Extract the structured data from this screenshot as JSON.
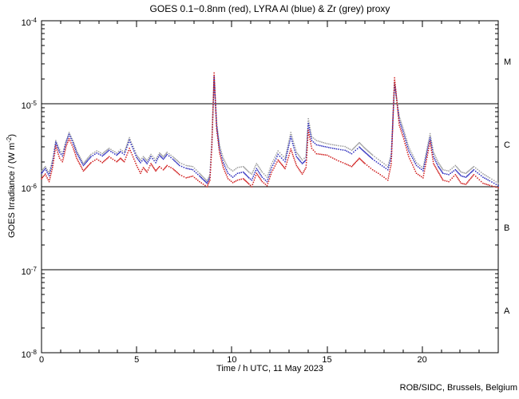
{
  "footer": "ROB/SIDC, Brussels, Belgium",
  "colors": {
    "background": "#ffffff",
    "frame": "#000000",
    "goes_red": "#cf1a1a",
    "lyra_al_blue": "#2727bc",
    "lyra_zr_grey": "#9c9c9c"
  },
  "chart_data": {
    "type": "scatter",
    "title": "GOES 0.1−0.8nm (red), LYRA Al (blue) & Zr (grey) proxy",
    "xlabel": "Time / h UTC, 11 May 2023",
    "ylabel_pre": "GOES Irradiance / (W m",
    "ylabel_sup": "-2",
    "ylabel_post": ")",
    "xlim": [
      0,
      24
    ],
    "ylim_exp": [
      -8,
      -4
    ],
    "x_major_ticks": [
      0,
      5,
      10,
      15,
      20
    ],
    "x_minor_step": 1,
    "grid": "off",
    "hlines_exp": [
      -5,
      -6,
      -7
    ],
    "y_tick_base": "10",
    "y_ticks": [
      {
        "exp": -4,
        "exp_label": "-4"
      },
      {
        "exp": -5,
        "exp_label": "-5"
      },
      {
        "exp": -6,
        "exp_label": "-6"
      },
      {
        "exp": -7,
        "exp_label": "-7"
      },
      {
        "exp": -8,
        "exp_label": "-8"
      }
    ],
    "class_bands": [
      {
        "label": "M",
        "exp_center": -4.5
      },
      {
        "label": "C",
        "exp_center": -5.5
      },
      {
        "label": "B",
        "exp_center": -6.5
      },
      {
        "label": "A",
        "exp_center": -7.5
      }
    ],
    "series": [
      {
        "name": "LYRA Zr proxy",
        "color": "#9c9c9c",
        "points": [
          [
            0.0,
            1.55e-06
          ],
          [
            0.2,
            1.75e-06
          ],
          [
            0.4,
            1.45e-06
          ],
          [
            0.6,
            2.2e-06
          ],
          [
            0.75,
            3.6e-06
          ],
          [
            0.95,
            2.8e-06
          ],
          [
            1.1,
            2.5e-06
          ],
          [
            1.3,
            3.6e-06
          ],
          [
            1.45,
            4.5e-06
          ],
          [
            1.65,
            3.6e-06
          ],
          [
            1.85,
            2.7e-06
          ],
          [
            2.2,
            1.9e-06
          ],
          [
            2.6,
            2.45e-06
          ],
          [
            2.9,
            2.7e-06
          ],
          [
            3.2,
            2.5e-06
          ],
          [
            3.55,
            2.9e-06
          ],
          [
            3.95,
            2.55e-06
          ],
          [
            4.15,
            2.8e-06
          ],
          [
            4.35,
            2.6e-06
          ],
          [
            4.62,
            3.9e-06
          ],
          [
            5.0,
            2.4e-06
          ],
          [
            5.2,
            2.1e-06
          ],
          [
            5.35,
            2.3e-06
          ],
          [
            5.55,
            2.05e-06
          ],
          [
            5.75,
            2.45e-06
          ],
          [
            6.0,
            2.1e-06
          ],
          [
            6.2,
            2.55e-06
          ],
          [
            6.4,
            2.3e-06
          ],
          [
            6.6,
            2.6e-06
          ],
          [
            6.9,
            2.3e-06
          ],
          [
            7.25,
            1.95e-06
          ],
          [
            7.6,
            1.8e-06
          ],
          [
            7.95,
            1.75e-06
          ],
          [
            8.3,
            1.45e-06
          ],
          [
            8.7,
            1.17e-06
          ],
          [
            8.85,
            1.4e-06
          ],
          [
            8.95,
            3.5e-06
          ],
          [
            9.07,
            2e-05
          ],
          [
            9.2,
            6e-06
          ],
          [
            9.35,
            3.2e-06
          ],
          [
            9.55,
            2.2e-06
          ],
          [
            9.8,
            1.7e-06
          ],
          [
            10.05,
            1.55e-06
          ],
          [
            10.3,
            1.7e-06
          ],
          [
            10.6,
            1.75e-06
          ],
          [
            10.9,
            1.5e-06
          ],
          [
            11.05,
            1.42e-06
          ],
          [
            11.3,
            1.9e-06
          ],
          [
            11.6,
            1.5e-06
          ],
          [
            11.85,
            1.3e-06
          ],
          [
            12.1,
            1.9e-06
          ],
          [
            12.43,
            2.7e-06
          ],
          [
            12.8,
            2.2e-06
          ],
          [
            13.1,
            4.5e-06
          ],
          [
            13.4,
            2.6e-06
          ],
          [
            13.7,
            2.1e-06
          ],
          [
            13.9,
            2.3e-06
          ],
          [
            14.02,
            6.6e-06
          ],
          [
            14.2,
            4e-06
          ],
          [
            14.45,
            3.6e-06
          ],
          [
            15.0,
            3.3e-06
          ],
          [
            15.5,
            3.15e-06
          ],
          [
            15.95,
            3.05e-06
          ],
          [
            16.3,
            2.75e-06
          ],
          [
            16.7,
            3.4e-06
          ],
          [
            17.0,
            2.9e-06
          ],
          [
            17.4,
            2.4e-06
          ],
          [
            17.8,
            2.05e-06
          ],
          [
            18.2,
            1.75e-06
          ],
          [
            18.38,
            2.5e-06
          ],
          [
            18.55,
            1.75e-05
          ],
          [
            18.8,
            7e-06
          ],
          [
            19.0,
            5.1e-06
          ],
          [
            19.3,
            3e-06
          ],
          [
            19.7,
            1.95e-06
          ],
          [
            20.05,
            1.67e-06
          ],
          [
            20.42,
            4.35e-06
          ],
          [
            20.6,
            2.6e-06
          ],
          [
            20.85,
            1.95e-06
          ],
          [
            21.1,
            1.6e-06
          ],
          [
            21.4,
            1.55e-06
          ],
          [
            21.75,
            1.8e-06
          ],
          [
            22.05,
            1.5e-06
          ],
          [
            22.3,
            1.45e-06
          ],
          [
            22.72,
            1.75e-06
          ],
          [
            23.2,
            1.43e-06
          ],
          [
            23.55,
            1.28e-06
          ],
          [
            24.0,
            1.1e-06
          ]
        ]
      },
      {
        "name": "LYRA Al proxy",
        "color": "#2727bc",
        "points": [
          [
            0.0,
            1.45e-06
          ],
          [
            0.2,
            1.65e-06
          ],
          [
            0.4,
            1.36e-06
          ],
          [
            0.6,
            2.05e-06
          ],
          [
            0.75,
            3.45e-06
          ],
          [
            0.95,
            2.6e-06
          ],
          [
            1.1,
            2.35e-06
          ],
          [
            1.3,
            3.45e-06
          ],
          [
            1.45,
            4.3e-06
          ],
          [
            1.65,
            3.4e-06
          ],
          [
            1.85,
            2.55e-06
          ],
          [
            2.2,
            1.8e-06
          ],
          [
            2.6,
            2.3e-06
          ],
          [
            2.9,
            2.55e-06
          ],
          [
            3.2,
            2.35e-06
          ],
          [
            3.55,
            2.75e-06
          ],
          [
            3.95,
            2.4e-06
          ],
          [
            4.15,
            2.65e-06
          ],
          [
            4.35,
            2.45e-06
          ],
          [
            4.62,
            3.65e-06
          ],
          [
            5.0,
            2.25e-06
          ],
          [
            5.2,
            1.95e-06
          ],
          [
            5.35,
            2.15e-06
          ],
          [
            5.55,
            1.9e-06
          ],
          [
            5.75,
            2.3e-06
          ],
          [
            6.0,
            1.95e-06
          ],
          [
            6.2,
            2.4e-06
          ],
          [
            6.4,
            2.15e-06
          ],
          [
            6.6,
            2.45e-06
          ],
          [
            6.9,
            2.15e-06
          ],
          [
            7.25,
            1.8e-06
          ],
          [
            7.6,
            1.67e-06
          ],
          [
            7.95,
            1.6e-06
          ],
          [
            8.3,
            1.35e-06
          ],
          [
            8.7,
            1.1e-06
          ],
          [
            8.85,
            1.3e-06
          ],
          [
            8.95,
            3.2e-06
          ],
          [
            9.07,
            2.1e-05
          ],
          [
            9.2,
            5.5e-06
          ],
          [
            9.35,
            2.9e-06
          ],
          [
            9.55,
            1.95e-06
          ],
          [
            9.8,
            1.45e-06
          ],
          [
            10.05,
            1.3e-06
          ],
          [
            10.3,
            1.45e-06
          ],
          [
            10.6,
            1.5e-06
          ],
          [
            10.9,
            1.28e-06
          ],
          [
            11.05,
            1.2e-06
          ],
          [
            11.3,
            1.65e-06
          ],
          [
            11.6,
            1.3e-06
          ],
          [
            11.85,
            1.15e-06
          ],
          [
            12.1,
            1.7e-06
          ],
          [
            12.43,
            2.45e-06
          ],
          [
            12.8,
            2e-06
          ],
          [
            13.1,
            4e-06
          ],
          [
            13.4,
            2.3e-06
          ],
          [
            13.7,
            1.9e-06
          ],
          [
            13.9,
            2.1e-06
          ],
          [
            14.02,
            5.8e-06
          ],
          [
            14.2,
            3.6e-06
          ],
          [
            14.45,
            3.2e-06
          ],
          [
            15.0,
            3e-06
          ],
          [
            15.5,
            2.85e-06
          ],
          [
            15.95,
            2.75e-06
          ],
          [
            16.3,
            2.5e-06
          ],
          [
            16.7,
            3e-06
          ],
          [
            17.0,
            2.6e-06
          ],
          [
            17.4,
            2.15e-06
          ],
          [
            17.8,
            1.85e-06
          ],
          [
            18.2,
            1.6e-06
          ],
          [
            18.38,
            2.3e-06
          ],
          [
            18.55,
            1.8e-05
          ],
          [
            18.8,
            6.3e-06
          ],
          [
            19.0,
            4.6e-06
          ],
          [
            19.3,
            2.7e-06
          ],
          [
            19.7,
            1.8e-06
          ],
          [
            20.05,
            1.56e-06
          ],
          [
            20.42,
            3.9e-06
          ],
          [
            20.6,
            2.3e-06
          ],
          [
            20.85,
            1.75e-06
          ],
          [
            21.1,
            1.45e-06
          ],
          [
            21.4,
            1.4e-06
          ],
          [
            21.75,
            1.6e-06
          ],
          [
            22.05,
            1.35e-06
          ],
          [
            22.3,
            1.3e-06
          ],
          [
            22.72,
            1.6e-06
          ],
          [
            23.2,
            1.3e-06
          ],
          [
            23.55,
            1.18e-06
          ],
          [
            24.0,
            1.03e-06
          ]
        ]
      },
      {
        "name": "GOES 0.1-0.8nm",
        "color": "#cf1a1a",
        "points": [
          [
            0.0,
            1.25e-06
          ],
          [
            0.2,
            1.42e-06
          ],
          [
            0.4,
            1.15e-06
          ],
          [
            0.6,
            1.8e-06
          ],
          [
            0.75,
            3.1e-06
          ],
          [
            0.95,
            2.2e-06
          ],
          [
            1.1,
            2e-06
          ],
          [
            1.3,
            3.1e-06
          ],
          [
            1.45,
            3.8e-06
          ],
          [
            1.65,
            3e-06
          ],
          [
            1.85,
            2.2e-06
          ],
          [
            2.2,
            1.55e-06
          ],
          [
            2.6,
            1.95e-06
          ],
          [
            2.9,
            2.15e-06
          ],
          [
            3.2,
            1.95e-06
          ],
          [
            3.55,
            2.3e-06
          ],
          [
            3.95,
            2e-06
          ],
          [
            4.15,
            2.2e-06
          ],
          [
            4.35,
            2e-06
          ],
          [
            4.62,
            2.9e-06
          ],
          [
            5.0,
            1.8e-06
          ],
          [
            5.2,
            1.45e-06
          ],
          [
            5.35,
            1.7e-06
          ],
          [
            5.55,
            1.5e-06
          ],
          [
            5.75,
            1.9e-06
          ],
          [
            6.0,
            1.55e-06
          ],
          [
            6.2,
            1.75e-06
          ],
          [
            6.4,
            1.6e-06
          ],
          [
            6.6,
            1.8e-06
          ],
          [
            6.9,
            1.65e-06
          ],
          [
            7.25,
            1.4e-06
          ],
          [
            7.6,
            1.28e-06
          ],
          [
            7.95,
            1.34e-06
          ],
          [
            8.3,
            1.15e-06
          ],
          [
            8.7,
            1e-06
          ],
          [
            8.85,
            1.2e-06
          ],
          [
            8.95,
            3e-06
          ],
          [
            9.07,
            2.35e-05
          ],
          [
            9.2,
            5e-06
          ],
          [
            9.35,
            2.6e-06
          ],
          [
            9.55,
            1.7e-06
          ],
          [
            9.8,
            1.25e-06
          ],
          [
            10.05,
            1.12e-06
          ],
          [
            10.3,
            1.2e-06
          ],
          [
            10.6,
            1.25e-06
          ],
          [
            10.9,
            1.08e-06
          ],
          [
            11.05,
            1e-06
          ],
          [
            11.3,
            1.45e-06
          ],
          [
            11.6,
            1.15e-06
          ],
          [
            11.85,
            1.03e-06
          ],
          [
            12.1,
            1.5e-06
          ],
          [
            12.43,
            2.1e-06
          ],
          [
            12.8,
            1.65e-06
          ],
          [
            13.1,
            2.85e-06
          ],
          [
            13.4,
            1.8e-06
          ],
          [
            13.7,
            1.42e-06
          ],
          [
            13.9,
            1.7e-06
          ],
          [
            14.02,
            4.8e-06
          ],
          [
            14.2,
            2.9e-06
          ],
          [
            14.45,
            2.5e-06
          ],
          [
            15.0,
            2.4e-06
          ],
          [
            15.5,
            2.1e-06
          ],
          [
            15.95,
            1.9e-06
          ],
          [
            16.3,
            1.75e-06
          ],
          [
            16.7,
            2.2e-06
          ],
          [
            17.0,
            1.9e-06
          ],
          [
            17.4,
            1.6e-06
          ],
          [
            17.8,
            1.4e-06
          ],
          [
            18.2,
            1.2e-06
          ],
          [
            18.38,
            1.9e-06
          ],
          [
            18.55,
            2.05e-05
          ],
          [
            18.8,
            5.5e-06
          ],
          [
            19.0,
            4e-06
          ],
          [
            19.3,
            2.3e-06
          ],
          [
            19.7,
            1.45e-06
          ],
          [
            20.05,
            1.28e-06
          ],
          [
            20.42,
            3.5e-06
          ],
          [
            20.6,
            1.9e-06
          ],
          [
            20.85,
            1.5e-06
          ],
          [
            21.1,
            1.2e-06
          ],
          [
            21.4,
            1.15e-06
          ],
          [
            21.75,
            1.4e-06
          ],
          [
            22.05,
            1.1e-06
          ],
          [
            22.3,
            1.07e-06
          ],
          [
            22.72,
            1.4e-06
          ],
          [
            23.2,
            1.1e-06
          ],
          [
            23.55,
            1.04e-06
          ],
          [
            24.0,
            9.7e-07
          ]
        ]
      }
    ]
  }
}
